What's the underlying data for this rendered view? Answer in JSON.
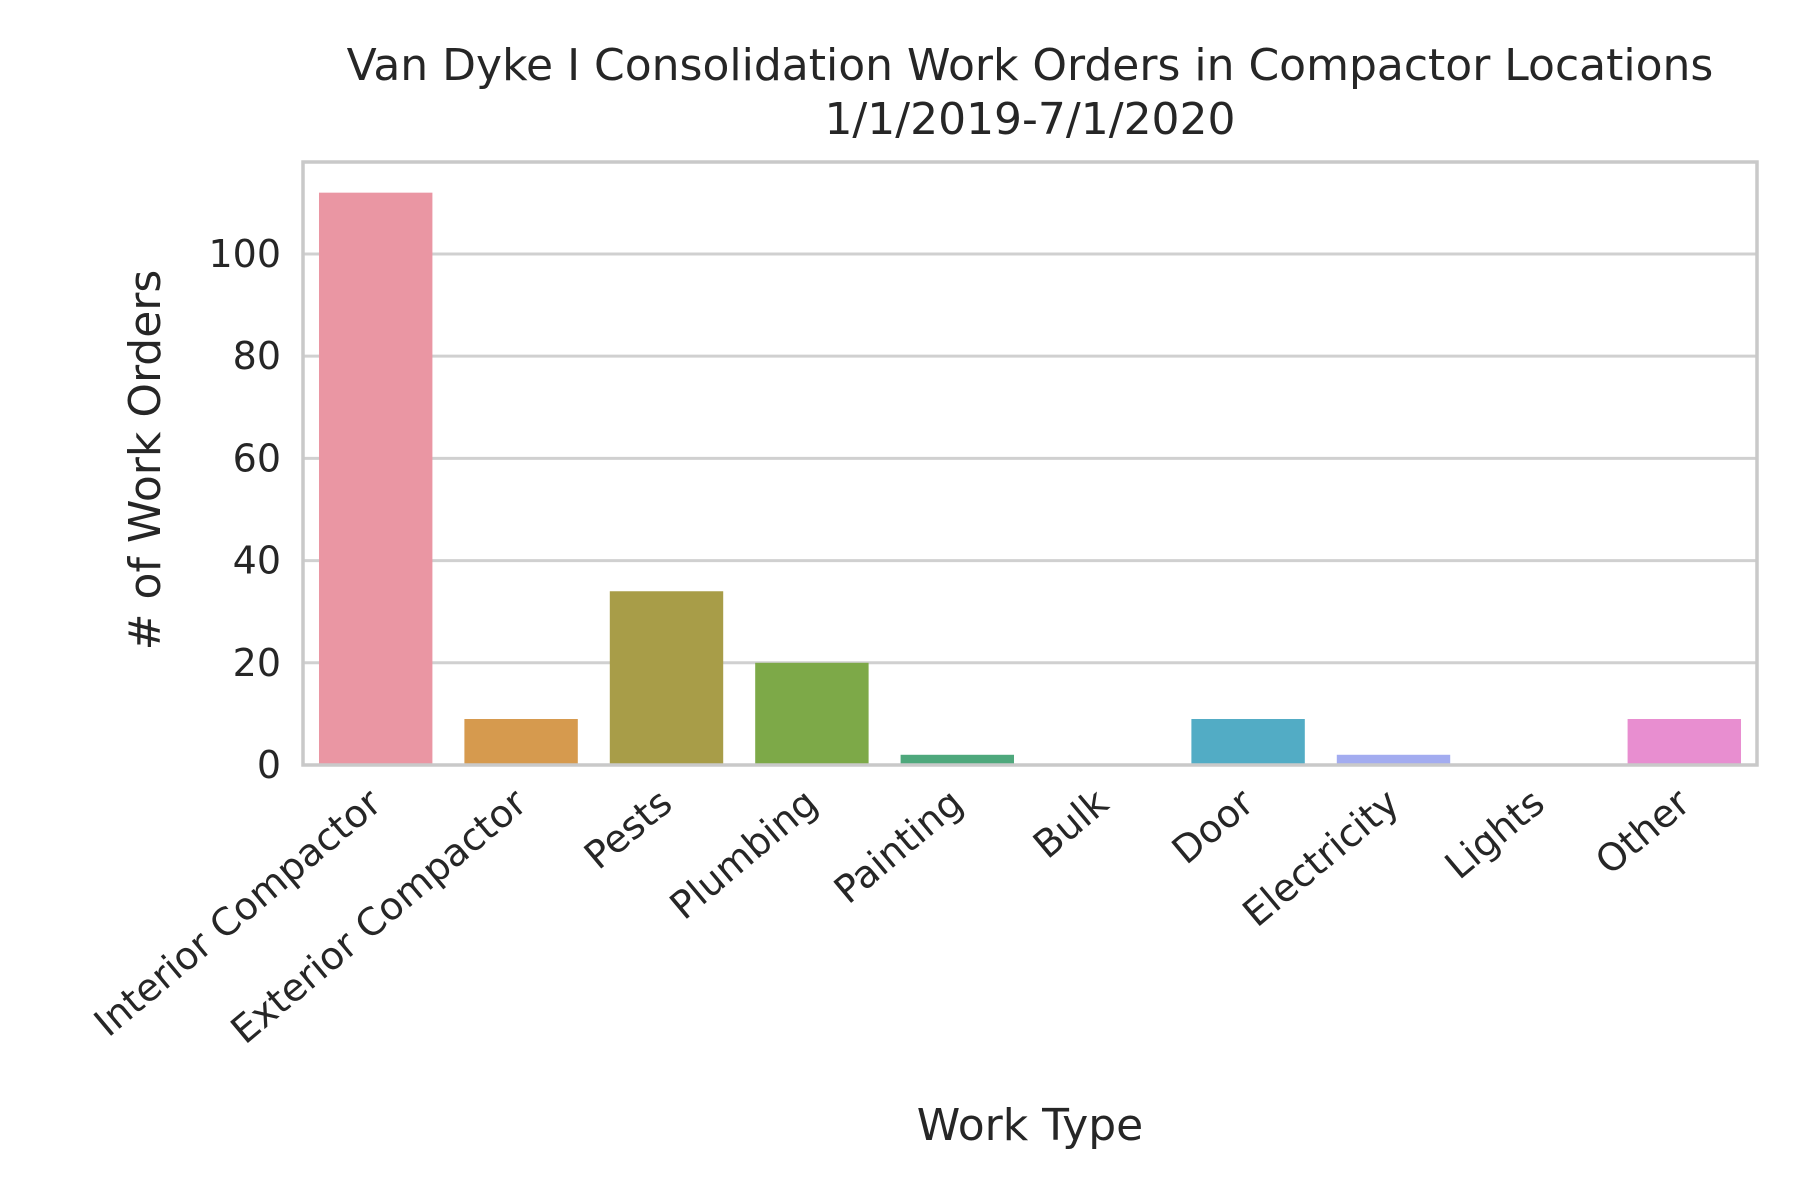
{
  "chart_data": {
    "type": "bar",
    "title": "Van Dyke I Consolidation Work Orders in Compactor Locations",
    "subtitle": "1/1/2019-7/1/2020",
    "xlabel": "Work Type",
    "ylabel": "# of Work Orders",
    "categories": [
      "Interior Compactor",
      "Exterior Compactor",
      "Pests",
      "Plumbing",
      "Painting",
      "Bulk",
      "Door",
      "Electricity",
      "Lights",
      "Other"
    ],
    "values": [
      112,
      9,
      34,
      20,
      2,
      0,
      9,
      2,
      0,
      9
    ],
    "colors": [
      "#ea96a3",
      "#d69a4e",
      "#a89d48",
      "#7da948",
      "#4ea87c",
      "#52a89e",
      "#52acc5",
      "#a3acf0",
      "#d49ef0",
      "#e88ed0"
    ],
    "ylim": [
      0,
      118
    ],
    "yticks": [
      0,
      20,
      40,
      60,
      80,
      100
    ],
    "grid": true,
    "legend": "none"
  }
}
